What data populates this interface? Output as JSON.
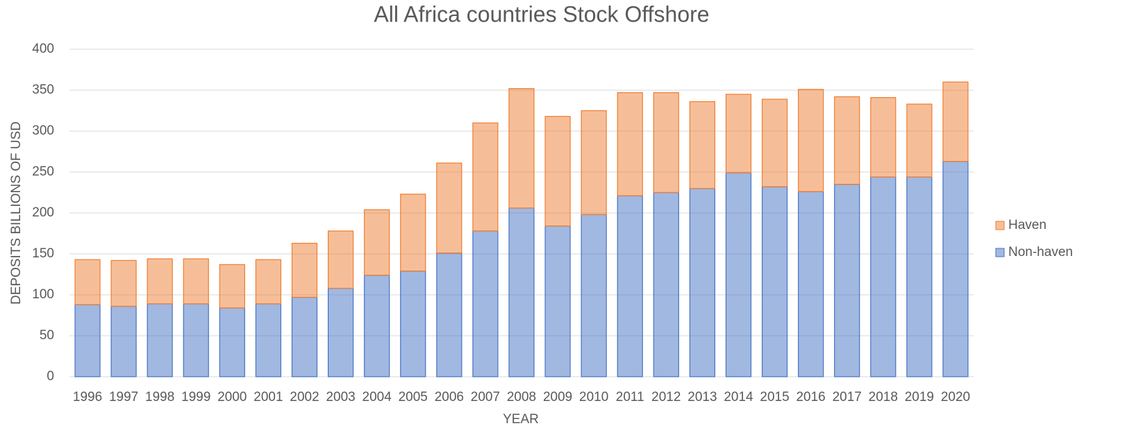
{
  "chart_data": {
    "type": "stacked_bar",
    "title": "All Africa countries Stock Offshore",
    "x_label": "YEAR",
    "y_label": "DEPOSITS BILLIONS OF USD",
    "categories": [
      "1996",
      "1997",
      "1998",
      "1999",
      "2000",
      "2001",
      "2002",
      "2003",
      "2004",
      "2005",
      "2006",
      "2007",
      "2008",
      "2009",
      "2010",
      "2011",
      "2012",
      "2013",
      "2014",
      "2015",
      "2016",
      "2017",
      "2018",
      "2019",
      "2020"
    ],
    "series": [
      {
        "name": "Non-haven",
        "color": "#4472c4",
        "values": [
          88,
          86,
          89,
          89,
          84,
          89,
          97,
          108,
          124,
          129,
          151,
          178,
          206,
          184,
          198,
          221,
          225,
          230,
          249,
          232,
          226,
          235,
          244,
          244,
          263
        ]
      },
      {
        "name": "Haven",
        "color": "#ed7d31",
        "values": [
          55,
          56,
          55,
          55,
          53,
          54,
          66,
          70,
          80,
          94,
          110,
          132,
          146,
          134,
          127,
          126,
          122,
          106,
          96,
          107,
          125,
          107,
          97,
          89,
          97
        ]
      }
    ],
    "ylim": [
      0,
      400
    ],
    "yticks": [
      0,
      50,
      100,
      150,
      200,
      250,
      300,
      350,
      400
    ],
    "grid": true,
    "legend": "right"
  }
}
